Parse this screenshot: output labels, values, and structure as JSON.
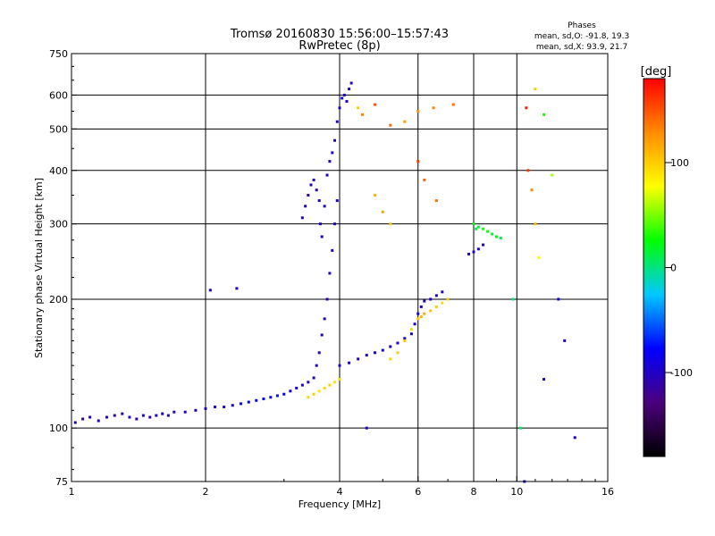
{
  "header": {
    "title": "Tromsø 20160830 15:56:00–15:57:43",
    "subtitle": "RwPretec (8p)"
  },
  "stats": {
    "heading": "Phases",
    "line_o": "mean, sd,O: -91.8, 19.3",
    "line_x": "mean, sd,X:  93.9, 21.7"
  },
  "colorbar": {
    "label": "[deg]",
    "ticks": [
      {
        "value": 100,
        "label": "100"
      },
      {
        "value": 0,
        "label": "0"
      },
      {
        "value": -100,
        "label": "-100"
      }
    ],
    "range": [
      -180,
      180
    ],
    "stops": [
      "#000000",
      "#4b007c",
      "#0000ff",
      "#00c8ff",
      "#00ff00",
      "#ffff00",
      "#ff8c00",
      "#ff0000"
    ]
  },
  "chart_data": {
    "type": "scatter",
    "title": "Tromsø 20160830 15:56:00–15:57:43",
    "subtitle": "RwPretec (8p)",
    "xlabel": "Frequency [MHz]",
    "ylabel": "Stationary phase Virtual Height [km]",
    "x_scale": "log",
    "y_scale": "log",
    "xlim": [
      1,
      16
    ],
    "ylim": [
      75,
      750
    ],
    "x_ticks": [
      {
        "value": 1,
        "label": "1"
      },
      {
        "value": 2,
        "label": "2"
      },
      {
        "value": 4,
        "label": "4"
      },
      {
        "value": 6,
        "label": "6"
      },
      {
        "value": 8,
        "label": "8"
      },
      {
        "value": 10,
        "label": "10"
      },
      {
        "value": 16,
        "label": "16"
      }
    ],
    "x_gridlines": [
      2,
      4,
      6,
      8,
      10
    ],
    "y_ticks": [
      {
        "value": 75,
        "label": "75"
      },
      {
        "value": 100,
        "label": "100"
      },
      {
        "value": 200,
        "label": "200"
      },
      {
        "value": 300,
        "label": "300"
      },
      {
        "value": 400,
        "label": "400"
      },
      {
        "value": 500,
        "label": "500"
      },
      {
        "value": 600,
        "label": "600"
      },
      {
        "value": 750,
        "label": "750"
      }
    ],
    "y_gridlines": [
      100,
      200,
      300,
      400,
      500,
      600
    ],
    "grid": true,
    "color_by": "phase_deg",
    "series": [
      {
        "points": [
          [
            1.02,
            103,
            -105
          ],
          [
            1.06,
            105,
            -110
          ],
          [
            1.1,
            106,
            -100
          ],
          [
            1.15,
            104,
            -95
          ],
          [
            1.2,
            106,
            -105
          ],
          [
            1.25,
            107,
            -110
          ],
          [
            1.3,
            108,
            -100
          ],
          [
            1.35,
            106,
            -95
          ],
          [
            1.4,
            105,
            -105
          ],
          [
            1.45,
            107,
            -100
          ],
          [
            1.5,
            106,
            -110
          ],
          [
            1.55,
            107,
            -100
          ],
          [
            1.6,
            108,
            -95
          ],
          [
            1.65,
            107,
            -105
          ],
          [
            1.7,
            109,
            -100
          ],
          [
            1.8,
            109,
            -95
          ],
          [
            1.9,
            110,
            -100
          ],
          [
            2.0,
            111,
            -105
          ],
          [
            2.1,
            112,
            -90
          ],
          [
            2.2,
            112,
            -95
          ],
          [
            2.3,
            113,
            -90
          ],
          [
            2.4,
            114,
            -85
          ],
          [
            2.5,
            115,
            -85
          ],
          [
            2.6,
            116,
            -80
          ],
          [
            2.7,
            117,
            -80
          ],
          [
            2.8,
            118,
            -75
          ],
          [
            2.9,
            119,
            -75
          ],
          [
            3.0,
            120,
            -80
          ],
          [
            3.1,
            122,
            -85
          ],
          [
            3.2,
            124,
            -90
          ],
          [
            3.3,
            126,
            -95
          ],
          [
            3.4,
            128,
            -100
          ],
          [
            3.5,
            131,
            -105
          ],
          [
            3.55,
            140,
            -100
          ],
          [
            3.6,
            150,
            -100
          ],
          [
            3.65,
            165,
            -105
          ],
          [
            3.7,
            180,
            -100
          ],
          [
            3.75,
            200,
            -105
          ],
          [
            3.8,
            230,
            -100
          ],
          [
            3.85,
            260,
            -105
          ],
          [
            3.9,
            300,
            -100
          ],
          [
            3.95,
            340,
            -100
          ]
        ]
      },
      {
        "points": [
          [
            3.3,
            310,
            -105
          ],
          [
            3.35,
            330,
            -100
          ],
          [
            3.4,
            350,
            -110
          ],
          [
            3.45,
            370,
            -100
          ],
          [
            3.5,
            380,
            -105
          ],
          [
            3.55,
            360,
            -110
          ],
          [
            3.6,
            340,
            -100
          ],
          [
            3.62,
            300,
            -95
          ],
          [
            3.65,
            280,
            -100
          ],
          [
            3.7,
            330,
            -105
          ],
          [
            3.75,
            390,
            -100
          ],
          [
            3.8,
            420,
            -105
          ],
          [
            3.85,
            440,
            -100
          ],
          [
            3.9,
            470,
            -105
          ],
          [
            3.95,
            520,
            -100
          ],
          [
            4.0,
            560,
            -105
          ],
          [
            4.05,
            590,
            -90
          ],
          [
            4.1,
            600,
            -95
          ],
          [
            4.15,
            580,
            -100
          ],
          [
            4.2,
            620,
            -95
          ],
          [
            4.25,
            640,
            -100
          ]
        ]
      },
      {
        "points": [
          [
            4.0,
            140,
            -105
          ],
          [
            4.2,
            142,
            -100
          ],
          [
            4.4,
            145,
            -95
          ],
          [
            4.6,
            148,
            -100
          ],
          [
            4.8,
            150,
            -90
          ],
          [
            5.0,
            152,
            -85
          ],
          [
            5.2,
            155,
            -90
          ],
          [
            5.4,
            158,
            -95
          ],
          [
            5.6,
            162,
            -100
          ],
          [
            5.8,
            166,
            -95
          ],
          [
            5.9,
            175,
            -100
          ],
          [
            6.0,
            185,
            -100
          ],
          [
            6.1,
            192,
            -105
          ],
          [
            6.2,
            198,
            -100
          ],
          [
            6.4,
            200,
            -95
          ],
          [
            6.6,
            204,
            -100
          ],
          [
            6.8,
            208,
            -95
          ]
        ]
      },
      {
        "points": [
          [
            3.4,
            118,
            95
          ],
          [
            3.5,
            120,
            100
          ],
          [
            3.6,
            122,
            90
          ],
          [
            3.7,
            124,
            95
          ],
          [
            3.8,
            126,
            100
          ],
          [
            3.9,
            128,
            90
          ],
          [
            4.0,
            130,
            95
          ],
          [
            5.2,
            145,
            95
          ],
          [
            5.4,
            150,
            100
          ],
          [
            5.6,
            160,
            105
          ],
          [
            5.8,
            170,
            95
          ],
          [
            6.0,
            180,
            100
          ],
          [
            6.1,
            182,
            110
          ],
          [
            6.2,
            185,
            115
          ],
          [
            6.4,
            188,
            105
          ],
          [
            6.6,
            192,
            100
          ],
          [
            6.8,
            196,
            95
          ],
          [
            7.0,
            200,
            100
          ]
        ]
      },
      {
        "points": [
          [
            8.0,
            300,
            20
          ],
          [
            8.1,
            292,
            15
          ],
          [
            8.2,
            295,
            10
          ],
          [
            8.4,
            292,
            30
          ],
          [
            8.6,
            288,
            25
          ],
          [
            8.8,
            284,
            15
          ],
          [
            9.0,
            280,
            20
          ],
          [
            9.2,
            278,
            10
          ]
        ]
      },
      {
        "points": [
          [
            7.8,
            255,
            -105
          ],
          [
            8.0,
            258,
            -100
          ],
          [
            8.2,
            262,
            -95
          ],
          [
            8.4,
            268,
            -100
          ]
        ]
      },
      {
        "points": [
          [
            2.05,
            210,
            -100
          ],
          [
            2.35,
            212,
            -95
          ],
          [
            4.6,
            100,
            -95
          ],
          [
            4.4,
            560,
            100
          ],
          [
            4.5,
            540,
            130
          ],
          [
            4.8,
            570,
            150
          ],
          [
            5.2,
            510,
            140
          ],
          [
            5.6,
            520,
            120
          ],
          [
            6.0,
            550,
            125
          ],
          [
            6.5,
            560,
            130
          ],
          [
            7.2,
            570,
            140
          ],
          [
            6.0,
            420,
            160
          ],
          [
            6.2,
            380,
            145
          ],
          [
            6.6,
            340,
            140
          ],
          [
            4.8,
            350,
            110
          ],
          [
            5.0,
            320,
            120
          ],
          [
            5.2,
            300,
            100
          ],
          [
            10.5,
            560,
            170
          ],
          [
            10.6,
            400,
            160
          ],
          [
            10.8,
            360,
            130
          ],
          [
            11.0,
            300,
            110
          ],
          [
            11.2,
            250,
            80
          ],
          [
            11.5,
            540,
            30
          ],
          [
            12.0,
            390,
            60
          ],
          [
            12.4,
            200,
            -90
          ],
          [
            12.8,
            160,
            -100
          ],
          [
            10.4,
            75,
            -90
          ],
          [
            13.5,
            95,
            -95
          ],
          [
            9.8,
            200,
            0
          ],
          [
            10.2,
            100,
            5
          ],
          [
            11.0,
            620,
            100
          ],
          [
            11.5,
            130,
            -100
          ]
        ]
      }
    ]
  }
}
